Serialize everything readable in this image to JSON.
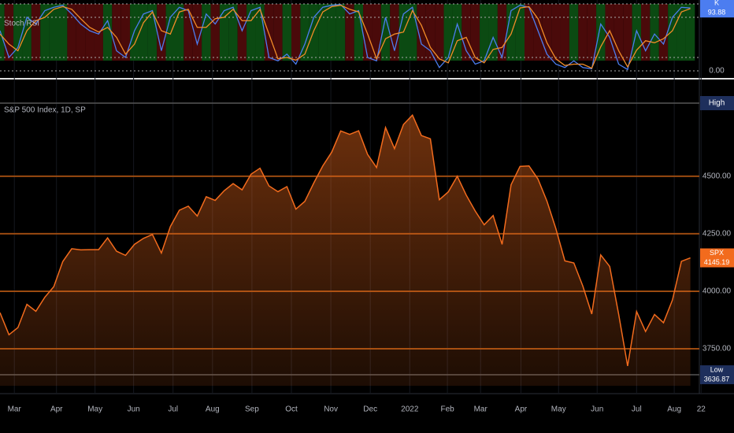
{
  "chart_data": [
    {
      "type": "line",
      "title": "Stoch RSI",
      "series": [
        {
          "name": "K",
          "color": "#4c7df0",
          "values": [
            60,
            20,
            35,
            80,
            70,
            90,
            95,
            98,
            85,
            70,
            60,
            55,
            75,
            30,
            20,
            60,
            85,
            90,
            30,
            80,
            95,
            90,
            40,
            85,
            70,
            90,
            95,
            60,
            90,
            95,
            20,
            15,
            25,
            10,
            40,
            80,
            95,
            98,
            99,
            85,
            90,
            20,
            15,
            80,
            30,
            85,
            95,
            40,
            30,
            5,
            20,
            70,
            30,
            10,
            15,
            50,
            20,
            90,
            98,
            95,
            60,
            25,
            10,
            5,
            15,
            5,
            3,
            70,
            50,
            10,
            2,
            60,
            30,
            55,
            40,
            80,
            95,
            93.88
          ]
        },
        {
          "color": "#f28c28",
          "values": [
            55,
            40,
            30,
            60,
            75,
            80,
            92,
            96,
            92,
            78,
            65,
            58,
            65,
            50,
            25,
            40,
            72,
            88,
            60,
            55,
            88,
            92,
            65,
            65,
            78,
            80,
            92,
            75,
            75,
            92,
            55,
            18,
            20,
            16,
            25,
            60,
            88,
            96,
            98,
            92,
            88,
            55,
            18,
            48,
            55,
            58,
            90,
            68,
            35,
            18,
            12,
            45,
            50,
            20,
            12,
            32,
            35,
            55,
            94,
            96,
            78,
            42,
            18,
            8,
            10,
            10,
            4,
            36,
            60,
            30,
            6,
            31,
            45,
            42,
            48,
            60,
            88,
            93
          ]
        }
      ],
      "ylim": [
        0,
        100
      ],
      "yticks": [
        {
          "value": 0,
          "label": "0.00"
        }
      ],
      "bands": [
        20,
        80,
        100
      ]
    },
    {
      "type": "area",
      "title": "S&P 500 Index, 1D, SP",
      "series": [
        {
          "name": "SPX",
          "color": "#f26b1d",
          "values": [
            3907,
            3811,
            3842,
            3943,
            3913,
            3974,
            4020,
            4129,
            4185,
            4180,
            4181,
            4181,
            4232,
            4174,
            4156,
            4204,
            4230,
            4247,
            4166,
            4281,
            4352,
            4370,
            4327,
            4411,
            4395,
            4437,
            4468,
            4441,
            4509,
            4535,
            4458,
            4433,
            4455,
            4357,
            4391,
            4471,
            4545,
            4605,
            4697,
            4682,
            4698,
            4595,
            4538,
            4712,
            4620,
            4725,
            4766,
            4677,
            4663,
            4398,
            4432,
            4500,
            4418,
            4349,
            4289,
            4329,
            4204,
            4463,
            4543,
            4545,
            4488,
            4392,
            4272,
            4132,
            4123,
            4023,
            3901,
            4158,
            4108,
            3900,
            3675,
            3912,
            3825,
            3899,
            3863,
            3962,
            4130,
            4145.19
          ]
        }
      ],
      "ylim": [
        3589,
        4907
      ],
      "yticks": [
        {
          "value": 3750,
          "label": "3750.00"
        },
        {
          "value": 4000,
          "label": "4000.00"
        },
        {
          "value": 4250,
          "label": "4250.00"
        },
        {
          "value": 4500,
          "label": "4500.00"
        }
      ],
      "xlim": [
        0,
        78
      ],
      "xticks": [
        {
          "value": 1.6,
          "label": "Mar"
        },
        {
          "value": 6.3,
          "label": "Apr"
        },
        {
          "value": 10.6,
          "label": "May"
        },
        {
          "value": 14.9,
          "label": "Jun"
        },
        {
          "value": 19.3,
          "label": "Jul"
        },
        {
          "value": 23.7,
          "label": "Aug"
        },
        {
          "value": 28.1,
          "label": "Sep"
        },
        {
          "value": 32.5,
          "label": "Oct"
        },
        {
          "value": 36.9,
          "label": "Nov"
        },
        {
          "value": 41.3,
          "label": "Dec"
        },
        {
          "value": 45.7,
          "label": "2022"
        },
        {
          "value": 49.9,
          "label": "Feb"
        },
        {
          "value": 53.6,
          "label": "Mar"
        },
        {
          "value": 58.1,
          "label": "Apr"
        },
        {
          "value": 62.3,
          "label": "May"
        },
        {
          "value": 66.6,
          "label": "Jun"
        },
        {
          "value": 71.0,
          "label": "Jul"
        },
        {
          "value": 75.2,
          "label": "Aug"
        },
        {
          "value": 78.2,
          "label": "22"
        }
      ],
      "high": {
        "value": 4818,
        "label": "High"
      },
      "low": {
        "value": 3636.87,
        "label": "Low"
      }
    }
  ]
}
